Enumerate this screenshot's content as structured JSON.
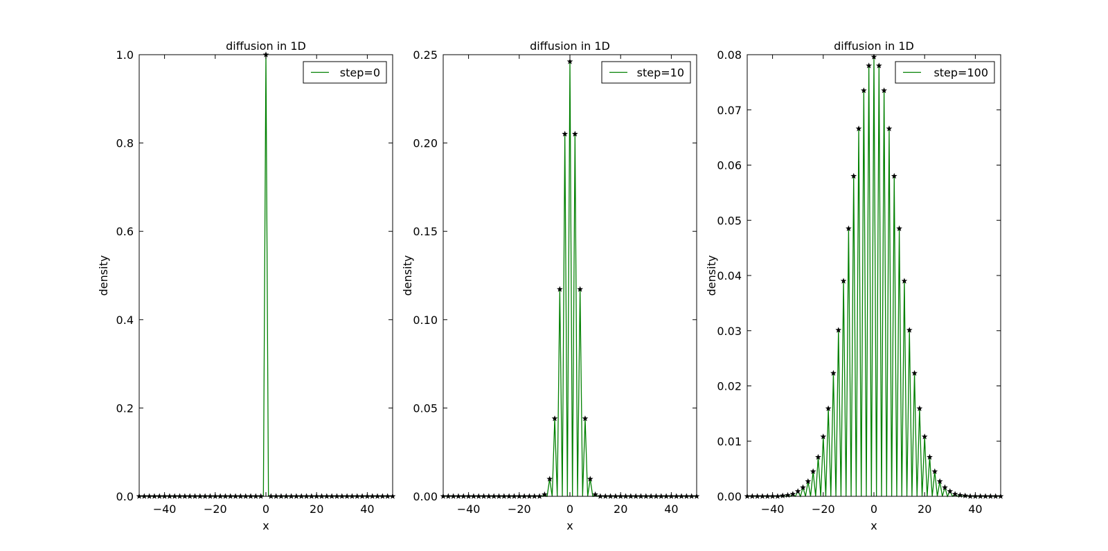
{
  "chart_data": [
    {
      "type": "line",
      "title": "diffusion in 1D",
      "xlabel": "x",
      "ylabel": "density",
      "xlim": [
        -50,
        50
      ],
      "ylim": [
        0,
        1.0
      ],
      "xticks": [
        "−40",
        "−20",
        "0",
        "20",
        "40"
      ],
      "yticks": [
        "0.0",
        "0.2",
        "0.4",
        "0.6",
        "0.8",
        "1.0"
      ],
      "grid": false,
      "legend_position": "top-right",
      "series": [
        {
          "name": "step=0",
          "color": "#008000",
          "marker": "star",
          "marker_color": "#000000",
          "points": [
            [
              0,
              1.0
            ]
          ]
        }
      ]
    },
    {
      "type": "line",
      "title": "diffusion in 1D",
      "xlabel": "x",
      "ylabel": "density",
      "xlim": [
        -50,
        50
      ],
      "ylim": [
        0,
        0.25
      ],
      "xticks": [
        "−40",
        "−20",
        "0",
        "20",
        "40"
      ],
      "yticks": [
        "0.00",
        "0.05",
        "0.10",
        "0.15",
        "0.20",
        "0.25"
      ],
      "grid": false,
      "legend_position": "top-right",
      "series": [
        {
          "name": "step=10",
          "color": "#008000",
          "marker": "star",
          "marker_color": "#000000",
          "points": [
            [
              -10,
              0.001
            ],
            [
              -8,
              0.0098
            ],
            [
              -6,
              0.044
            ],
            [
              -4,
              0.1172
            ],
            [
              -2,
              0.2051
            ],
            [
              0,
              0.2461
            ],
            [
              2,
              0.2051
            ],
            [
              4,
              0.1172
            ],
            [
              6,
              0.044
            ],
            [
              8,
              0.0098
            ],
            [
              10,
              0.001
            ]
          ]
        }
      ]
    },
    {
      "type": "line",
      "title": "diffusion in 1D",
      "xlabel": "x",
      "ylabel": "density",
      "xlim": [
        -50,
        50
      ],
      "ylim": [
        0,
        0.08
      ],
      "xticks": [
        "−40",
        "−20",
        "0",
        "20",
        "40"
      ],
      "yticks": [
        "0.00",
        "0.01",
        "0.02",
        "0.03",
        "0.04",
        "0.05",
        "0.06",
        "0.07",
        "0.08"
      ],
      "grid": false,
      "legend_position": "top-right",
      "series": [
        {
          "name": "step=100",
          "color": "#008000",
          "marker": "star",
          "marker_color": "#000000",
          "points": [
            [
              -36,
              0.0001
            ],
            [
              -34,
              0.0002
            ],
            [
              -32,
              0.0004
            ],
            [
              -30,
              0.0009
            ],
            [
              -28,
              0.0016
            ],
            [
              -26,
              0.0027
            ],
            [
              -24,
              0.0045
            ],
            [
              -22,
              0.0071
            ],
            [
              -20,
              0.0108
            ],
            [
              -18,
              0.0159
            ],
            [
              -16,
              0.0223
            ],
            [
              -14,
              0.0301
            ],
            [
              -12,
              0.039
            ],
            [
              -10,
              0.0485
            ],
            [
              -8,
              0.058
            ],
            [
              -6,
              0.0666
            ],
            [
              -4,
              0.0735
            ],
            [
              -2,
              0.078
            ],
            [
              0,
              0.0796
            ],
            [
              2,
              0.078
            ],
            [
              4,
              0.0735
            ],
            [
              6,
              0.0666
            ],
            [
              8,
              0.058
            ],
            [
              10,
              0.0485
            ],
            [
              12,
              0.039
            ],
            [
              14,
              0.0301
            ],
            [
              16,
              0.0223
            ],
            [
              18,
              0.0159
            ],
            [
              20,
              0.0108
            ],
            [
              22,
              0.0071
            ],
            [
              24,
              0.0045
            ],
            [
              26,
              0.0027
            ],
            [
              28,
              0.0016
            ],
            [
              30,
              0.0009
            ],
            [
              32,
              0.0004
            ],
            [
              34,
              0.0002
            ],
            [
              36,
              0.0001
            ]
          ]
        }
      ]
    }
  ]
}
